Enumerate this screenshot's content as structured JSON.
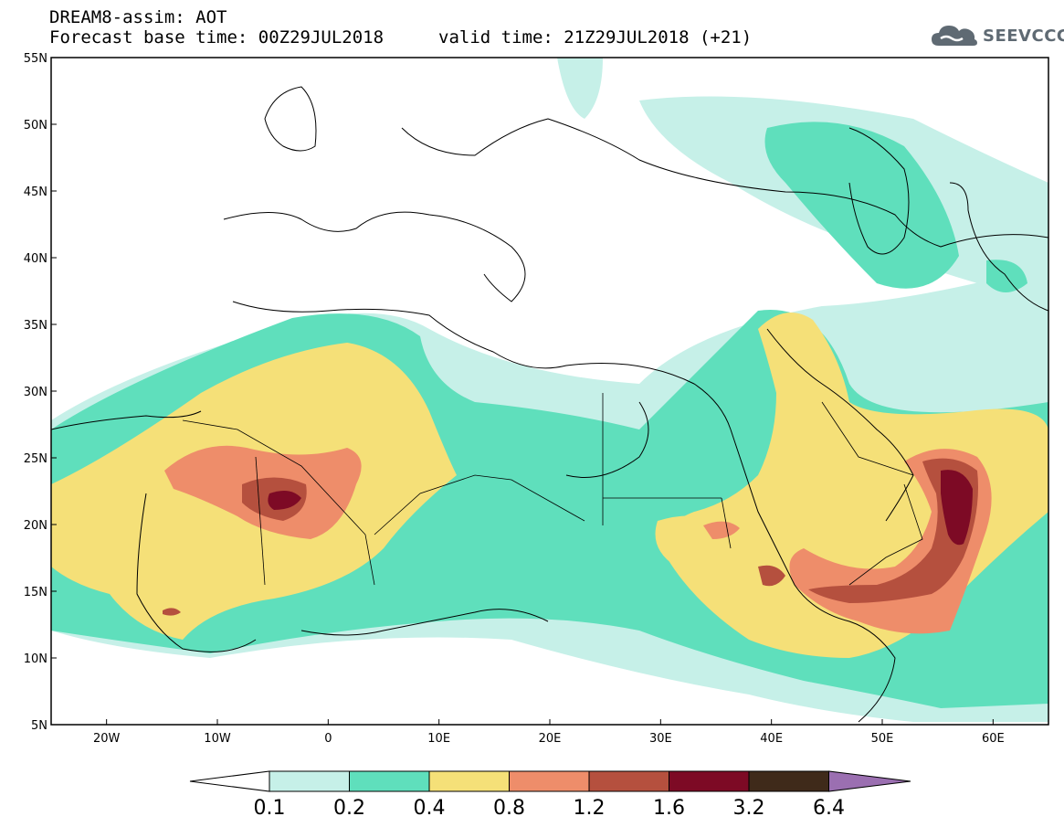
{
  "header": {
    "title": "DREAM8-assim: AOT",
    "base_time": "Forecast base time: 00Z29JUL2018",
    "valid_time": "valid time: 21Z29JUL2018 (+21)"
  },
  "logo": {
    "text": "SEEVCCC",
    "icon": "cloud-icon"
  },
  "map": {
    "latitude_labels": [
      "55N",
      "50N",
      "45N",
      "40N",
      "35N",
      "30N",
      "25N",
      "20N",
      "15N",
      "10N",
      "5N"
    ],
    "longitude_labels": [
      "20W",
      "10W",
      "0",
      "10E",
      "20E",
      "30E",
      "40E",
      "50E",
      "60E"
    ],
    "lat_range": [
      5,
      55
    ],
    "lon_range": [
      -25,
      65
    ]
  },
  "colorbar": {
    "levels": [
      "0.1",
      "0.2",
      "0.4",
      "0.8",
      "1.2",
      "1.6",
      "3.2",
      "6.4"
    ],
    "colors": [
      "#c6f0e8",
      "#5fdfbc",
      "#f5e078",
      "#ee8d6a",
      "#b5503e",
      "#7d0a25",
      "#3f2a1a"
    ],
    "over_color": "#9b6fb1",
    "under_color": "#ffffff"
  }
}
